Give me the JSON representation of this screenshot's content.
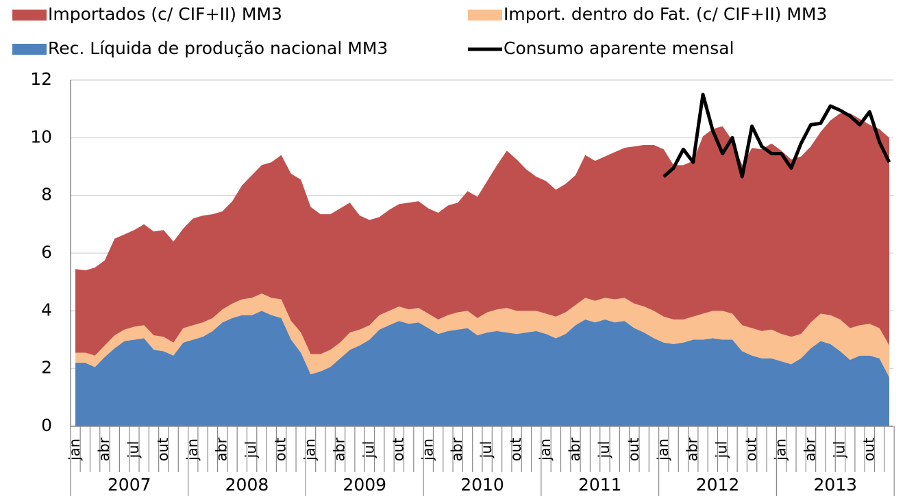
{
  "chart_data": {
    "type": "stacked_area",
    "legend": "top",
    "grid": true,
    "ylim": [
      0,
      12
    ],
    "yticks": [
      0,
      2,
      4,
      6,
      8,
      10,
      12
    ],
    "categories": [
      "jan",
      null,
      null,
      "abr",
      null,
      null,
      "jul",
      null,
      null,
      "out",
      null,
      null,
      "jan",
      null,
      null,
      "abr",
      null,
      null,
      "jul",
      null,
      null,
      "out",
      null,
      null,
      "jan",
      null,
      null,
      "abr",
      null,
      null,
      "jul",
      null,
      null,
      "out",
      null,
      null,
      "jan",
      null,
      null,
      "abr",
      null,
      null,
      "jul",
      null,
      null,
      "out",
      null,
      null,
      "jan",
      null,
      null,
      "abr",
      null,
      null,
      "jul",
      null,
      null,
      "out",
      null,
      null,
      "jan",
      null,
      null,
      "abr",
      null,
      null,
      "jul",
      null,
      null,
      "out",
      null,
      null,
      "jan",
      null,
      null,
      "abr",
      null,
      null,
      "jul",
      null,
      null,
      "out",
      null,
      null
    ],
    "years": [
      "2007",
      "2008",
      "2009",
      "2010",
      "2011",
      "2012",
      "2013"
    ],
    "series": [
      {
        "name": "Rec. Líquida de produção nacional MM3",
        "color": "#4f81bd",
        "values": [
          2.2,
          2.2,
          2.05,
          2.4,
          2.7,
          2.95,
          3.0,
          3.05,
          2.65,
          2.6,
          2.45,
          2.9,
          3.0,
          3.1,
          3.3,
          3.6,
          3.75,
          3.85,
          3.85,
          4.0,
          3.85,
          3.75,
          3.0,
          2.55,
          1.8,
          1.9,
          2.05,
          2.35,
          2.65,
          2.8,
          3.0,
          3.35,
          3.5,
          3.65,
          3.55,
          3.6,
          3.4,
          3.2,
          3.3,
          3.35,
          3.4,
          3.15,
          3.25,
          3.3,
          3.25,
          3.2,
          3.25,
          3.3,
          3.2,
          3.05,
          3.2,
          3.5,
          3.7,
          3.6,
          3.7,
          3.6,
          3.65,
          3.4,
          3.25,
          3.05,
          2.9,
          2.85,
          2.9,
          3.0,
          3.0,
          3.05,
          3.0,
          3.0,
          2.6,
          2.45,
          2.35,
          2.35,
          2.25,
          2.15,
          2.35,
          2.7,
          2.95,
          2.85,
          2.6,
          2.3,
          2.45,
          2.45,
          2.35,
          1.7
        ]
      },
      {
        "name": "Import. dentro do Fat. (c/ CIF+II) MM3",
        "color": "#fac090",
        "values": [
          0.35,
          0.35,
          0.4,
          0.4,
          0.45,
          0.4,
          0.45,
          0.45,
          0.5,
          0.5,
          0.45,
          0.5,
          0.5,
          0.5,
          0.45,
          0.45,
          0.5,
          0.55,
          0.6,
          0.6,
          0.6,
          0.65,
          0.65,
          0.7,
          0.7,
          0.6,
          0.6,
          0.55,
          0.6,
          0.55,
          0.5,
          0.5,
          0.5,
          0.5,
          0.5,
          0.5,
          0.5,
          0.5,
          0.55,
          0.6,
          0.6,
          0.6,
          0.7,
          0.75,
          0.85,
          0.8,
          0.75,
          0.7,
          0.7,
          0.75,
          0.75,
          0.7,
          0.75,
          0.75,
          0.75,
          0.8,
          0.8,
          0.85,
          0.9,
          0.95,
          0.9,
          0.85,
          0.8,
          0.8,
          0.9,
          0.95,
          1.0,
          0.9,
          0.9,
          0.95,
          0.95,
          1.0,
          0.95,
          0.95,
          0.85,
          0.9,
          0.95,
          1.0,
          1.1,
          1.1,
          1.05,
          1.1,
          1.05,
          1.1
        ]
      },
      {
        "name": "Importados (c/ CIF+II) MM3",
        "color": "#c0504d",
        "values": [
          2.9,
          2.85,
          3.05,
          2.95,
          3.35,
          3.3,
          3.35,
          3.5,
          3.6,
          3.7,
          3.5,
          3.45,
          3.7,
          3.7,
          3.6,
          3.4,
          3.55,
          3.95,
          4.25,
          4.45,
          4.7,
          5.0,
          5.1,
          5.3,
          5.1,
          4.85,
          4.7,
          4.65,
          4.5,
          3.95,
          3.65,
          3.4,
          3.5,
          3.55,
          3.7,
          3.7,
          3.65,
          3.7,
          3.8,
          3.8,
          4.15,
          4.2,
          4.55,
          5.0,
          5.45,
          5.25,
          4.9,
          4.65,
          4.6,
          4.4,
          4.45,
          4.5,
          4.95,
          4.85,
          4.9,
          5.1,
          5.2,
          5.45,
          5.6,
          5.75,
          5.8,
          5.35,
          5.35,
          5.4,
          6.15,
          6.3,
          6.4,
          6.0,
          5.55,
          6.25,
          6.3,
          6.45,
          6.35,
          6.15,
          6.15,
          6.1,
          6.3,
          6.75,
          7.15,
          7.45,
          7.15,
          6.9,
          6.9,
          7.2
        ]
      }
    ],
    "line": {
      "name": "Consumo aparente mensal",
      "color": "#000000",
      "values": [
        null,
        null,
        null,
        null,
        null,
        null,
        null,
        null,
        null,
        null,
        null,
        null,
        null,
        null,
        null,
        null,
        null,
        null,
        null,
        null,
        null,
        null,
        null,
        null,
        null,
        null,
        null,
        null,
        null,
        null,
        null,
        null,
        null,
        null,
        null,
        null,
        null,
        null,
        null,
        null,
        null,
        null,
        null,
        null,
        null,
        null,
        null,
        null,
        null,
        null,
        null,
        null,
        null,
        null,
        null,
        null,
        null,
        null,
        null,
        null,
        8.65,
        8.95,
        9.6,
        9.15,
        11.5,
        10.25,
        9.45,
        10.0,
        8.65,
        10.4,
        9.7,
        9.45,
        9.45,
        8.95,
        9.8,
        10.45,
        10.5,
        11.1,
        10.95,
        10.75,
        10.45,
        10.9,
        9.85,
        9.15
      ]
    }
  }
}
